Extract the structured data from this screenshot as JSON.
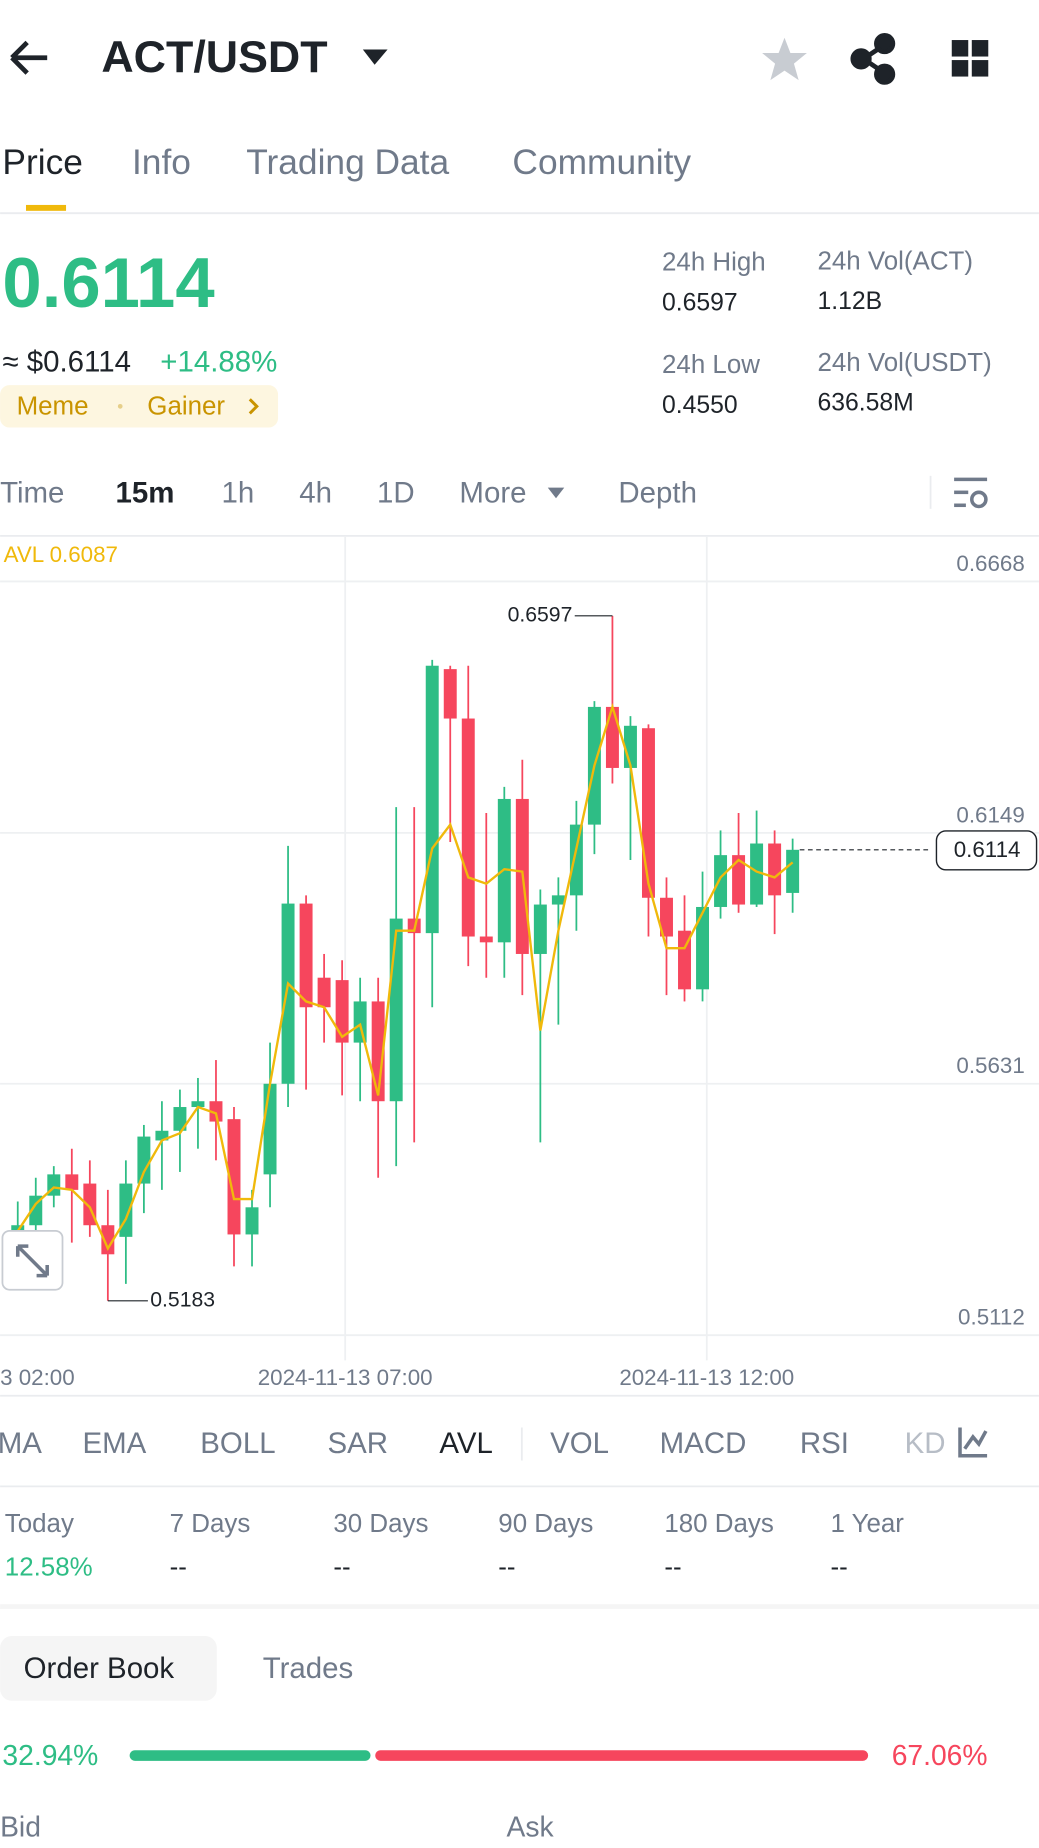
{
  "header": {
    "title": "ACT/USDT"
  },
  "tabs": [
    "Price",
    "Info",
    "Trading Data",
    "Community"
  ],
  "price": {
    "last": "0.6114",
    "usd": "≈ $0.6114",
    "change": "+14.88%",
    "tags": [
      "Meme",
      "Gainer"
    ]
  },
  "stats": [
    {
      "label": "24h High",
      "value": "0.6597"
    },
    {
      "label": "24h Vol(ACT)",
      "value": "1.12B"
    },
    {
      "label": "24h Low",
      "value": "0.4550"
    },
    {
      "label": "24h Vol(USDT)",
      "value": "636.58M"
    }
  ],
  "intervals": [
    "Time",
    "15m",
    "1h",
    "4h",
    "1D",
    "More",
    "Depth"
  ],
  "chart_data": {
    "type": "candlestick",
    "avl_label": "AVL 0.6087",
    "up_color": "#2ebd85",
    "down_color": "#f6465d",
    "avl_color": "#f0b90b",
    "ylim": [
      0.506,
      0.6762
    ],
    "yticks": [
      0.6668,
      0.6149,
      0.5631,
      0.5112
    ],
    "xtick_labels": [
      "3 02:00",
      "2024-11-13 07:00",
      "2024-11-13 12:00"
    ],
    "high_label": "0.6597",
    "low_label": "0.5183",
    "last_label": "0.6114",
    "open": [
      0.5315,
      0.5339,
      0.54,
      0.5444,
      0.5425,
      0.5339,
      0.5315,
      0.5425,
      0.5514,
      0.5534,
      0.5583,
      0.5595,
      0.5558,
      0.532,
      0.5444,
      0.5631,
      0.6003,
      0.585,
      0.5845,
      0.5716,
      0.5801,
      0.5595,
      0.5972,
      0.5942,
      0.6487,
      0.6385,
      0.5935,
      0.5923,
      0.6219,
      0.5899,
      0.6001,
      0.602,
      0.6166,
      0.6409,
      0.6283,
      0.6365,
      0.6015,
      0.5947,
      0.5826,
      0.5996,
      0.6103,
      0.6001,
      0.6127,
      0.6025
    ],
    "high": [
      0.5388,
      0.5437,
      0.5461,
      0.5497,
      0.5473,
      0.5412,
      0.5473,
      0.5546,
      0.5595,
      0.5619,
      0.5643,
      0.568,
      0.5583,
      0.5412,
      0.5716,
      0.6122,
      0.602,
      0.5899,
      0.5886,
      0.585,
      0.585,
      0.6202,
      0.6202,
      0.6506,
      0.6494,
      0.6494,
      0.619,
      0.6244,
      0.63,
      0.6032,
      0.6057,
      0.6215,
      0.6421,
      0.6597,
      0.639,
      0.6373,
      0.6057,
      0.602,
      0.6069,
      0.6154,
      0.619,
      0.6195,
      0.6154,
      0.6137
    ],
    "low": [
      0.5291,
      0.5315,
      0.5376,
      0.5303,
      0.5315,
      0.5183,
      0.5218,
      0.5364,
      0.5412,
      0.5449,
      0.5497,
      0.5473,
      0.5254,
      0.5254,
      0.5376,
      0.5583,
      0.5619,
      0.5716,
      0.5607,
      0.5595,
      0.5437,
      0.5461,
      0.551,
      0.5789,
      0.613,
      0.5874,
      0.585,
      0.585,
      0.5814,
      0.551,
      0.5753,
      0.5947,
      0.6105,
      0.6251,
      0.6093,
      0.5935,
      0.5814,
      0.5801,
      0.5801,
      0.5972,
      0.5984,
      0.5996,
      0.594,
      0.5984
    ],
    "close": [
      0.5339,
      0.54,
      0.5444,
      0.5412,
      0.5339,
      0.5279,
      0.5425,
      0.5522,
      0.5534,
      0.5583,
      0.5595,
      0.5553,
      0.532,
      0.5376,
      0.5631,
      0.6003,
      0.5789,
      0.5789,
      0.5716,
      0.5801,
      0.5595,
      0.5972,
      0.5942,
      0.6494,
      0.6385,
      0.5935,
      0.5923,
      0.6219,
      0.5899,
      0.6001,
      0.602,
      0.6166,
      0.6409,
      0.6283,
      0.637,
      0.6015,
      0.5935,
      0.5826,
      0.5996,
      0.6103,
      0.6001,
      0.6127,
      0.602,
      0.6114
    ],
    "avl": [
      0.5327,
      0.5383,
      0.5417,
      0.5412,
      0.5376,
      0.5291,
      0.5352,
      0.5449,
      0.5514,
      0.5529,
      0.5583,
      0.557,
      0.5393,
      0.5393,
      0.5631,
      0.5838,
      0.5801,
      0.5789,
      0.5728,
      0.5753,
      0.5607,
      0.5947,
      0.5947,
      0.6117,
      0.6166,
      0.6057,
      0.6044,
      0.6074,
      0.6069,
      0.5741,
      0.5947,
      0.6117,
      0.6288,
      0.6409,
      0.6288,
      0.6044,
      0.5911,
      0.5911,
      0.5984,
      0.6057,
      0.6093,
      0.6069,
      0.6057,
      0.6088
    ]
  },
  "indicators": [
    "MA",
    "EMA",
    "BOLL",
    "SAR",
    "AVL",
    "VOL",
    "MACD",
    "RSI",
    "KD"
  ],
  "performance": [
    {
      "label": "Today",
      "value": "12.58%"
    },
    {
      "label": "7 Days",
      "value": "--"
    },
    {
      "label": "30 Days",
      "value": "--"
    },
    {
      "label": "90 Days",
      "value": "--"
    },
    {
      "label": "180 Days",
      "value": "--"
    },
    {
      "label": "1 Year",
      "value": "--"
    }
  ],
  "order_book": {
    "tabs": [
      "Order Book",
      "Trades"
    ],
    "bid_label": "32.94%",
    "ask_label": "67.06%",
    "bid": 32.94,
    "ask": 67.06,
    "columns": [
      "Bid",
      "Ask"
    ]
  }
}
